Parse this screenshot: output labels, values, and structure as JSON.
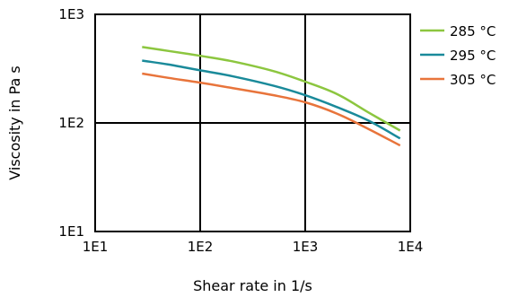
{
  "chart_data": {
    "type": "line",
    "title": "",
    "xlabel": "Shear rate in 1/s",
    "ylabel": "Viscosity in Pa s",
    "x_scale": "log",
    "y_scale": "log",
    "xlim": [
      10,
      10000
    ],
    "ylim": [
      10,
      1000
    ],
    "x_ticks": [
      {
        "value": 10,
        "label": "1E1"
      },
      {
        "value": 100,
        "label": "1E2"
      },
      {
        "value": 1000,
        "label": "1E3"
      },
      {
        "value": 10000,
        "label": "1E4"
      }
    ],
    "y_ticks": [
      {
        "value": 10,
        "label": "1E1"
      },
      {
        "value": 100,
        "label": "1E2"
      },
      {
        "value": 1000,
        "label": "1E3"
      }
    ],
    "grid": true,
    "legend_position": "right",
    "series": [
      {
        "name": "285 °C",
        "color": "#8CC63F",
        "x": [
          28,
          50,
          100,
          200,
          500,
          1000,
          2000,
          4000,
          8000
        ],
        "y": [
          500,
          460,
          415,
          370,
          300,
          240,
          185,
          125,
          85
        ]
      },
      {
        "name": "295 °C",
        "color": "#1A8A9A",
        "x": [
          28,
          50,
          100,
          200,
          500,
          1000,
          2000,
          4000,
          8000
        ],
        "y": [
          375,
          345,
          305,
          270,
          220,
          180,
          140,
          105,
          72
        ]
      },
      {
        "name": "305 °C",
        "color": "#E8743B",
        "x": [
          28,
          50,
          100,
          200,
          500,
          1000,
          2000,
          4000,
          8000
        ],
        "y": [
          285,
          260,
          235,
          210,
          180,
          155,
          122,
          88,
          62
        ]
      }
    ]
  }
}
